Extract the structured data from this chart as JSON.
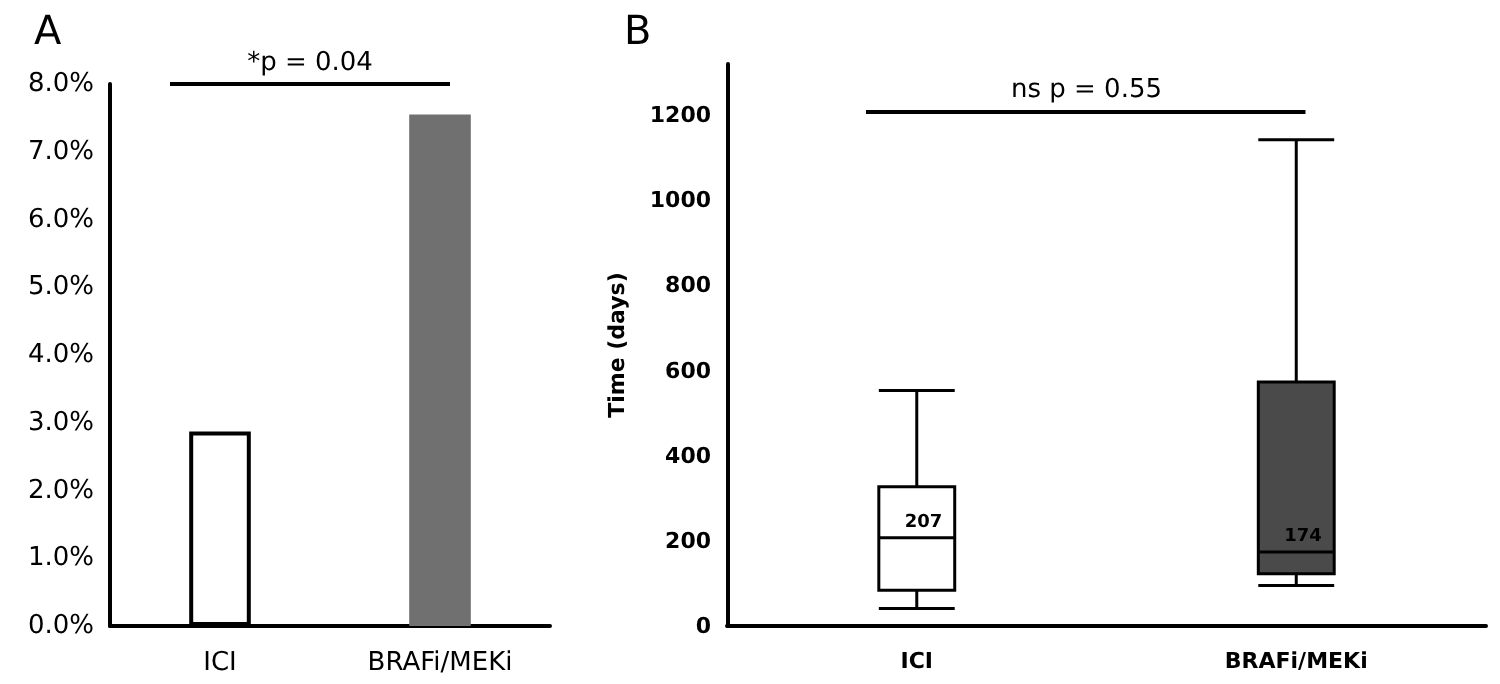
{
  "chart_data": [
    {
      "type": "bar",
      "title": "A",
      "categories": [
        "ICI",
        "BRAFi/MEKi"
      ],
      "values": [
        2.87,
        7.55
      ],
      "colors": [
        "#ffffff",
        "#707070"
      ],
      "ylim": [
        0,
        8
      ],
      "yticks": [
        {
          "value": 0,
          "label": "0.0%"
        },
        {
          "value": 1,
          "label": "1.0%"
        },
        {
          "value": 2,
          "label": "2.0%"
        },
        {
          "value": 3,
          "label": "3.0%"
        },
        {
          "value": 4,
          "label": "4.0%"
        },
        {
          "value": 5,
          "label": "5.0%"
        },
        {
          "value": 6,
          "label": "6.0%"
        },
        {
          "value": 7,
          "label": "7.0%"
        },
        {
          "value": 8,
          "label": "8.0%"
        }
      ],
      "annotations": [
        "*p = 0.04"
      ],
      "grid": false
    },
    {
      "type": "box",
      "title": "B",
      "categories": [
        "ICI",
        "BRAFi/MEKi"
      ],
      "ylabel": "Time (days)",
      "boxes": [
        {
          "low": 41,
          "q1": 84,
          "median": 207,
          "q3": 327,
          "high": 553
        },
        {
          "low": 95,
          "q1": 123,
          "median": 174,
          "q3": 573,
          "high": 1142
        }
      ],
      "colors": [
        "#ffffff",
        "#4a4a4a"
      ],
      "ylim": [
        0,
        1320
      ],
      "yticks": [
        0,
        200,
        400,
        600,
        800,
        1000,
        1200
      ],
      "annotations": [
        "ns p = 0.55",
        {
          "text": "207",
          "x": "ICI",
          "y": 207
        },
        {
          "text": "174",
          "x": "BRAFi/MEKi",
          "y": 174
        }
      ],
      "grid": false
    }
  ]
}
